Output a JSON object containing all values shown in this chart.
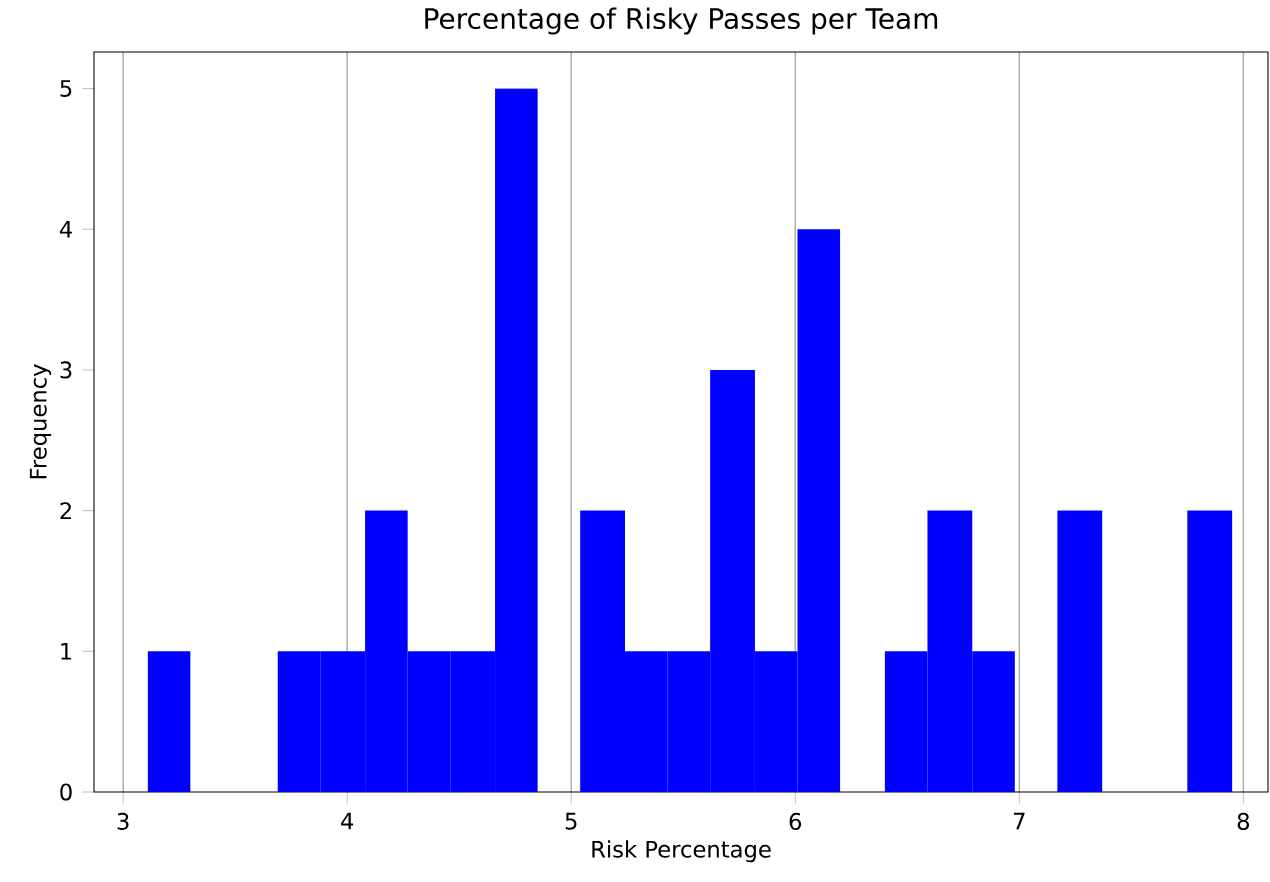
{
  "chart_data": {
    "type": "histogram",
    "title": "Percentage of Risky Passes per Team",
    "xlabel": "Risk Percentage",
    "ylabel": "Frequency",
    "color": "#0000ff",
    "bins": [
      3.11,
      3.3,
      3.69,
      3.88,
      4.08,
      4.27,
      4.46,
      4.66,
      4.85,
      5.04,
      5.24,
      5.43,
      5.62,
      5.82,
      6.01,
      6.2,
      6.4,
      6.59,
      6.79,
      6.98,
      7.17,
      7.37,
      7.75,
      7.95
    ],
    "values": [
      1,
      0,
      1,
      1,
      2,
      1,
      1,
      5,
      0,
      2,
      1,
      1,
      3,
      1,
      4,
      0,
      1,
      2,
      1,
      0,
      2,
      0,
      2
    ],
    "xlim": [
      2.87,
      8.11
    ],
    "ylim": [
      0,
      5.26
    ],
    "xticks": [
      3,
      4,
      5,
      6,
      7,
      8
    ],
    "yticks": [
      0,
      1,
      2,
      3,
      4,
      5
    ],
    "grid": "x"
  }
}
